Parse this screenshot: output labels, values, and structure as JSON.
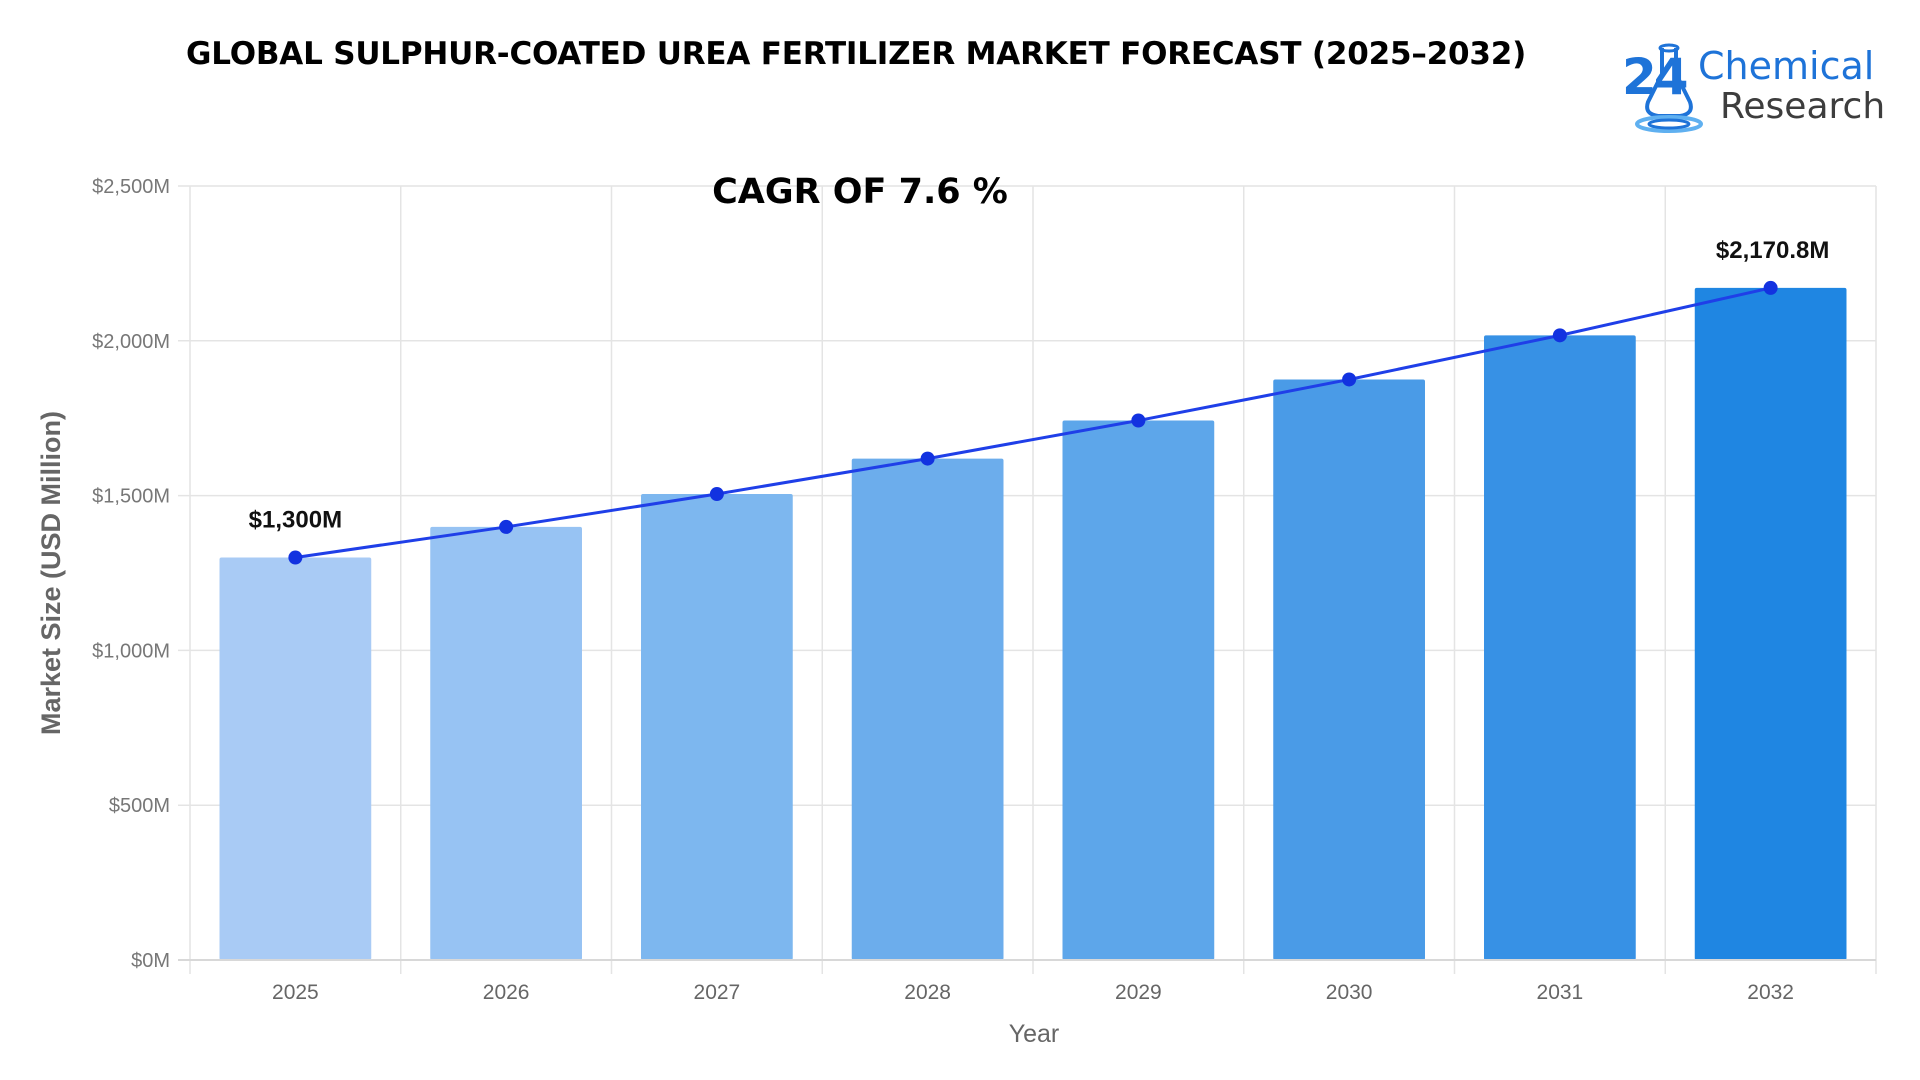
{
  "title": "GLOBAL SULPHUR-COATED UREA FERTILIZER MARKET FORECAST (2025–2032)",
  "logo": {
    "number": "24",
    "line1": "Chemical",
    "line2": "Research",
    "icon": "flask-icon",
    "color_primary": "#1e73d8",
    "color_secondary": "#3d3d3d"
  },
  "cagr_label": "CAGR OF 7.6  %",
  "chart_data": {
    "type": "bar",
    "title": "GLOBAL SULPHUR-COATED UREA FERTILIZER MARKET FORECAST (2025–2032)",
    "xlabel": "Year",
    "ylabel": "Market Size (USD Million)",
    "categories": [
      "2025",
      "2026",
      "2027",
      "2028",
      "2029",
      "2030",
      "2031",
      "2032"
    ],
    "series": [
      {
        "type": "bar",
        "values": [
          1300,
          1398.8,
          1505.1,
          1619.5,
          1742.6,
          1875.1,
          2017.6,
          2170.8
        ]
      },
      {
        "type": "line",
        "values": [
          1300,
          1398.8,
          1505.1,
          1619.5,
          1742.6,
          1875.1,
          2017.6,
          2170.8
        ]
      }
    ],
    "ylim": [
      0,
      2500
    ],
    "yticks": [
      0,
      500,
      1000,
      1500,
      2000,
      2500
    ],
    "ytick_labels": [
      "$0M",
      "$500M",
      "$1,000M",
      "$1,500M",
      "$2,000M",
      "$2,500M"
    ],
    "data_labels": [
      {
        "index": 0,
        "text": "$1,300M"
      },
      {
        "index": 7,
        "text": "$2,170.8M"
      }
    ],
    "grid": true,
    "bar_colors": [
      "#a9cbf5",
      "#97c3f3",
      "#7db7ef",
      "#6cadec",
      "#5da6ea",
      "#4a9be7",
      "#3791e5",
      "#1f86e2"
    ],
    "line_color": "#1f3fe8",
    "point_color": "#1232e0"
  }
}
